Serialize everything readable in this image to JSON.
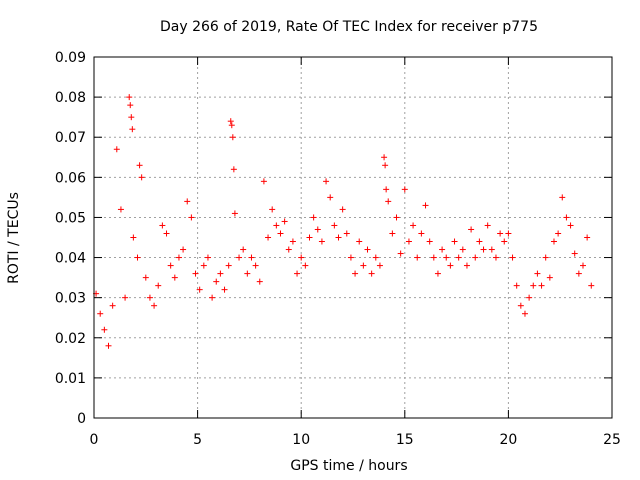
{
  "chart_data": {
    "type": "scatter",
    "title": "Day 266 of 2019, Rate Of TEC Index for receiver p775",
    "xlabel": "GPS time / hours",
    "ylabel": "ROTI / TECUs",
    "xlim": [
      0,
      25
    ],
    "ylim": [
      0,
      0.09
    ],
    "xticks": [
      0,
      5,
      10,
      15,
      20,
      25
    ],
    "yticks": [
      0,
      0.01,
      0.02,
      0.03,
      0.04,
      0.05,
      0.06,
      0.07,
      0.08,
      0.09
    ],
    "xtick_labels": [
      "0",
      "5",
      "10",
      "15",
      "20",
      "25"
    ],
    "ytick_labels": [
      "0",
      "0.01",
      "0.02",
      "0.03",
      "0.04",
      "0.05",
      "0.06",
      "0.07",
      "0.08",
      "0.09"
    ],
    "grid": true,
    "marker": "+",
    "color": "#ff0000",
    "series": [
      {
        "name": "ROTI",
        "x": [
          0.1,
          0.3,
          0.5,
          0.7,
          0.9,
          1.1,
          1.3,
          1.5,
          1.7,
          1.75,
          1.8,
          1.85,
          1.9,
          2.1,
          2.2,
          2.3,
          2.5,
          2.7,
          2.9,
          3.1,
          3.3,
          3.5,
          3.7,
          3.9,
          4.1,
          4.3,
          4.5,
          4.7,
          4.9,
          5.1,
          5.3,
          5.5,
          5.7,
          5.9,
          6.1,
          6.3,
          6.5,
          6.6,
          6.65,
          6.7,
          6.75,
          6.8,
          7.0,
          7.2,
          7.4,
          7.6,
          7.8,
          8.0,
          8.2,
          8.4,
          8.6,
          8.8,
          9.0,
          9.2,
          9.4,
          9.6,
          9.8,
          10.0,
          10.2,
          10.4,
          10.6,
          10.8,
          11.0,
          11.2,
          11.4,
          11.6,
          11.8,
          12.0,
          12.2,
          12.4,
          12.6,
          12.8,
          13.0,
          13.2,
          13.4,
          13.6,
          13.8,
          14.0,
          14.05,
          14.1,
          14.2,
          14.4,
          14.6,
          14.8,
          15.0,
          15.2,
          15.4,
          15.6,
          15.8,
          16.0,
          16.2,
          16.4,
          16.6,
          16.8,
          17.0,
          17.2,
          17.4,
          17.6,
          17.8,
          18.0,
          18.2,
          18.4,
          18.6,
          18.8,
          19.0,
          19.2,
          19.4,
          19.6,
          19.8,
          20.0,
          20.2,
          20.4,
          20.6,
          20.8,
          21.0,
          21.2,
          21.4,
          21.6,
          21.8,
          22.0,
          22.2,
          22.4,
          22.6,
          22.8,
          23.0,
          23.2,
          23.4,
          23.6,
          23.8,
          24.0
        ],
        "y": [
          0.031,
          0.026,
          0.022,
          0.018,
          0.028,
          0.067,
          0.052,
          0.03,
          0.08,
          0.078,
          0.075,
          0.072,
          0.045,
          0.04,
          0.063,
          0.06,
          0.035,
          0.03,
          0.028,
          0.033,
          0.048,
          0.046,
          0.038,
          0.035,
          0.04,
          0.042,
          0.054,
          0.05,
          0.036,
          0.032,
          0.038,
          0.04,
          0.03,
          0.034,
          0.036,
          0.032,
          0.038,
          0.074,
          0.073,
          0.07,
          0.062,
          0.051,
          0.04,
          0.042,
          0.036,
          0.04,
          0.038,
          0.034,
          0.059,
          0.045,
          0.052,
          0.048,
          0.046,
          0.049,
          0.042,
          0.044,
          0.036,
          0.04,
          0.038,
          0.045,
          0.05,
          0.047,
          0.044,
          0.059,
          0.055,
          0.048,
          0.045,
          0.052,
          0.046,
          0.04,
          0.036,
          0.044,
          0.038,
          0.042,
          0.036,
          0.04,
          0.038,
          0.065,
          0.063,
          0.057,
          0.054,
          0.046,
          0.05,
          0.041,
          0.057,
          0.044,
          0.048,
          0.04,
          0.046,
          0.053,
          0.044,
          0.04,
          0.036,
          0.042,
          0.04,
          0.038,
          0.044,
          0.04,
          0.042,
          0.038,
          0.047,
          0.04,
          0.044,
          0.042,
          0.048,
          0.042,
          0.04,
          0.046,
          0.044,
          0.046,
          0.04,
          0.033,
          0.028,
          0.026,
          0.03,
          0.033,
          0.036,
          0.033,
          0.04,
          0.035,
          0.044,
          0.046,
          0.055,
          0.05,
          0.048,
          0.041,
          0.036,
          0.038,
          0.045,
          0.033
        ]
      }
    ]
  }
}
